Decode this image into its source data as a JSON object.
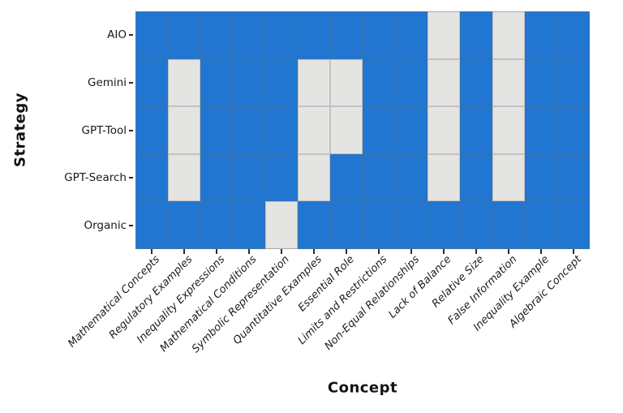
{
  "chart_data": {
    "type": "heatmap",
    "title": "",
    "xlabel": "Concept",
    "ylabel": "Strategy",
    "legend": "none",
    "rows": [
      "AIO",
      "Gemini",
      "GPT-Tool",
      "GPT-Search",
      "Organic"
    ],
    "columns": [
      "Mathematical Concepts",
      "Regulatory Examples",
      "Inequality Expressions",
      "Mathematical Conditions",
      "Symbolic Representation",
      "Quantitative Examples",
      "Essential Role",
      "Limits and Restrictions",
      "Non-Equal Relationships",
      "Lack of Balance",
      "Relative Size",
      "False Information",
      "Inequality Example",
      "Algebraic Concept"
    ],
    "matrix": [
      [
        1,
        1,
        1,
        1,
        1,
        1,
        1,
        1,
        1,
        0,
        1,
        0,
        1,
        1
      ],
      [
        1,
        0,
        1,
        1,
        1,
        0,
        0,
        1,
        1,
        0,
        1,
        0,
        1,
        1
      ],
      [
        1,
        0,
        1,
        1,
        1,
        0,
        0,
        1,
        1,
        0,
        1,
        0,
        1,
        1
      ],
      [
        1,
        0,
        1,
        1,
        1,
        0,
        1,
        1,
        1,
        0,
        1,
        0,
        1,
        1
      ],
      [
        1,
        1,
        1,
        1,
        0,
        1,
        1,
        1,
        1,
        1,
        1,
        1,
        1,
        1
      ]
    ],
    "value_meaning": {
      "1": "present",
      "0": "absent"
    },
    "colors": {
      "present": "#2176d2",
      "absent": "#e4e4e2",
      "tick": "#2b2b2b",
      "text": "#1a1a1a"
    }
  }
}
